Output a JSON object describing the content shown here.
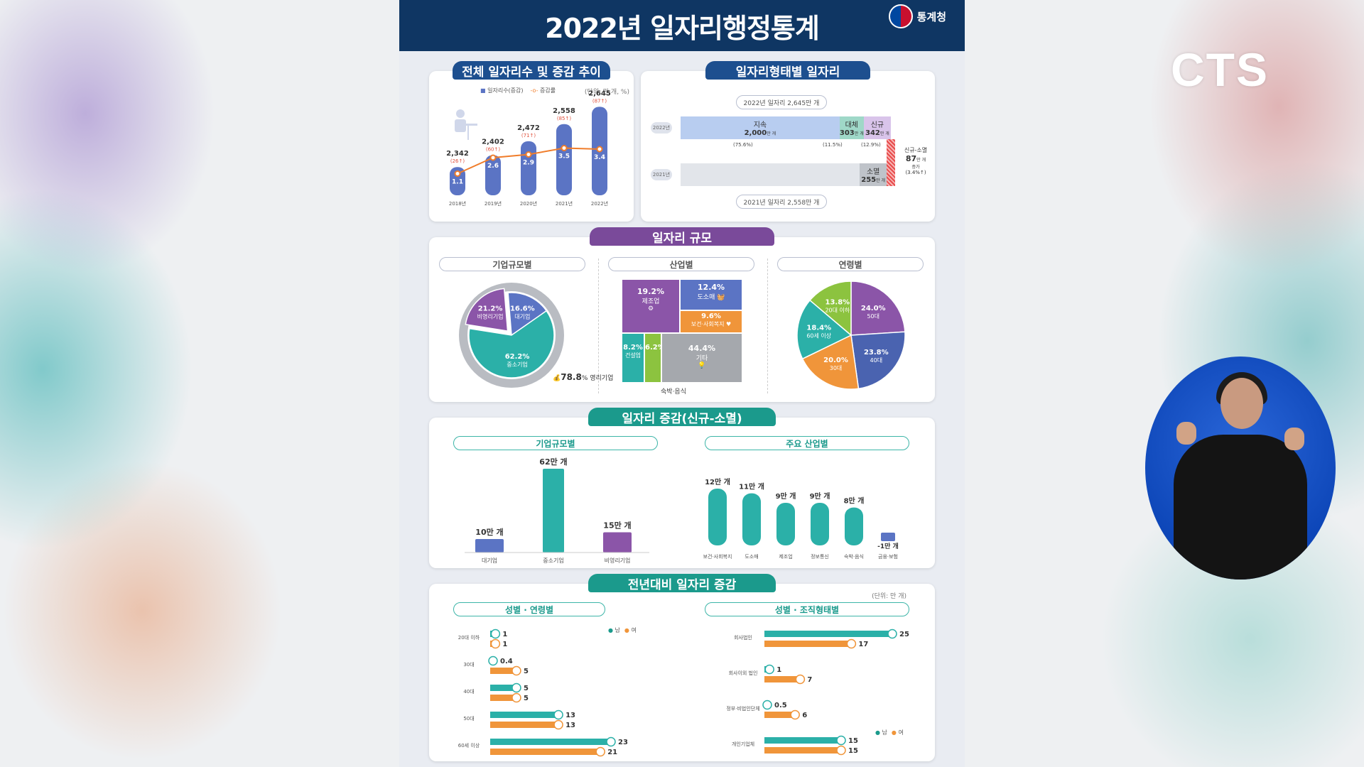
{
  "poster": {
    "title": "2022년 일자리행정통계",
    "logo_text": "통계청"
  },
  "broadcaster": {
    "name": "CTS",
    "logo_icon": "cts-logo-icon"
  },
  "section1": {
    "title": "전체 일자리수 및 증감 추이",
    "legend_count": "일자리수(증감)",
    "legend_rate": "증감률",
    "unit": "(단위: 만 개, %)",
    "chart_data": {
      "type": "bar",
      "categories": [
        "2018년",
        "2019년",
        "2020년",
        "2021년",
        "2022년"
      ],
      "series": [
        {
          "name": "일자리수(증감)",
          "values": [
            2342,
            2402,
            2472,
            2558,
            2645
          ]
        },
        {
          "name": "증감률",
          "values": [
            1.1,
            2.6,
            2.9,
            3.5,
            3.4
          ]
        }
      ],
      "changes": [
        "(26↑)",
        "(60↑)",
        "(71↑)",
        "(85↑)",
        "(87↑)"
      ],
      "ylim": [
        2200,
        2700
      ]
    }
  },
  "section2": {
    "title": "일자리형태별 일자리",
    "total_2022": "2022년 일자리 2,645만 개",
    "total_2021": "2021년 일자리 2,558만 개",
    "year_2022": "2022년",
    "year_2021": "2021년",
    "bars_2022": [
      {
        "label": "지속",
        "value": "2,000",
        "unit": "만 개",
        "pct": "(75.6%)",
        "share": 75.6
      },
      {
        "label": "대체",
        "value": "303",
        "unit": "만 개",
        "pct": "(11.5%)",
        "share": 11.5
      },
      {
        "label": "신규",
        "value": "342",
        "unit": "만 개",
        "pct": "(12.9%)",
        "share": 12.9
      }
    ],
    "bar_2021_extinct": {
      "label": "소멸",
      "value": "255",
      "unit": "만 개"
    },
    "net": {
      "label": "신규-소멸",
      "value": "87",
      "unit": "만 개",
      "sub": "증가",
      "pct": "(3.4%↑)"
    }
  },
  "section3": {
    "title": "일자리 규모",
    "by_company": {
      "label": "기업규모별",
      "chart_data": {
        "type": "pie",
        "categories": [
          "비영리기업",
          "대기업",
          "중소기업"
        ],
        "values": [
          21.2,
          16.6,
          62.2
        ]
      },
      "profit_value": "78.8",
      "profit_label": "영리기업",
      "labels": [
        "21.2%",
        "비영리기업",
        "16.6%",
        "대기업",
        "62.2%",
        "중소기업"
      ]
    },
    "by_industry": {
      "label": "산업별",
      "chart_data": {
        "type": "heatmap",
        "categories": [
          "제조업",
          "도소매",
          "보건·사회복지",
          "건설업",
          "숙박·음식",
          "기타"
        ],
        "values": [
          19.2,
          12.4,
          9.6,
          8.2,
          6.2,
          44.4
        ]
      },
      "cells": [
        {
          "pct": "19.2%",
          "name": "제조업"
        },
        {
          "pct": "12.4%",
          "name": "도소매"
        },
        {
          "pct": "9.6%",
          "name": "보건·사회복지"
        },
        {
          "pct": "8.2%",
          "name": "건설업"
        },
        {
          "pct": "6.2%",
          "name": ""
        },
        {
          "pct": "44.4%",
          "name": "기타"
        }
      ],
      "footnote": "숙박·음식"
    },
    "by_age": {
      "label": "연령별",
      "chart_data": {
        "type": "pie",
        "categories": [
          "50대",
          "40대",
          "30대",
          "60세 이상",
          "20대 이하"
        ],
        "values": [
          24.0,
          23.8,
          20.0,
          18.4,
          13.8
        ]
      },
      "labels": [
        {
          "pct": "24.0%",
          "name": "50대"
        },
        {
          "pct": "23.8%",
          "name": "40대"
        },
        {
          "pct": "20.0%",
          "name": "30대"
        },
        {
          "pct": "18.4%",
          "name": "60세 이상"
        },
        {
          "pct": "13.8%",
          "name": "20대 이하"
        }
      ],
      "colors": [
        "#8b55a8",
        "#4a63b0",
        "#f0953a",
        "#2bb0a8",
        "#8cc33f"
      ]
    }
  },
  "section4": {
    "title": "일자리 증감(신규-소멸)",
    "by_company": {
      "label": "기업규모별",
      "chart_data": {
        "type": "bar",
        "categories": [
          "대기업",
          "중소기업",
          "비영리기업"
        ],
        "values": [
          10,
          62,
          15
        ]
      },
      "value_labels": [
        "10만 개",
        "62만 개",
        "15만 개"
      ]
    },
    "by_industry": {
      "label": "주요 산업별",
      "chart_data": {
        "type": "bar",
        "categories": [
          "보건·사회복지",
          "도소매",
          "제조업",
          "정보통신",
          "숙박·음식",
          "금융·보험"
        ],
        "values": [
          12,
          11,
          9,
          9,
          8,
          -1
        ]
      },
      "value_labels": [
        "12만 개",
        "11만 개",
        "9만 개",
        "9만 개",
        "8만 개",
        "-1만 개"
      ]
    }
  },
  "section5": {
    "title": "전년대비 일자리 증감",
    "unit": "(단위: 만 개)",
    "legend_male": "남",
    "legend_female": "여",
    "by_age": {
      "label": "성별 · 연령별",
      "chart_data": {
        "type": "bar",
        "categories": [
          "20대 이하",
          "30대",
          "40대",
          "50대",
          "60세 이상"
        ],
        "series": [
          {
            "name": "남",
            "values": [
              1,
              0.4,
              5,
              13,
              23
            ]
          },
          {
            "name": "여",
            "values": [
              1,
              5,
              5,
              13,
              21
            ]
          }
        ]
      }
    },
    "by_org": {
      "label": "성별 · 조직형태별",
      "chart_data": {
        "type": "bar",
        "categories": [
          "회사법인",
          "회사이외 법인",
          "정부·비법인단체",
          "개인기업체"
        ],
        "series": [
          {
            "name": "남",
            "values": [
              25,
              1,
              0.5,
              15
            ]
          },
          {
            "name": "여",
            "values": [
              17,
              7,
              6,
              15
            ]
          }
        ]
      }
    }
  }
}
